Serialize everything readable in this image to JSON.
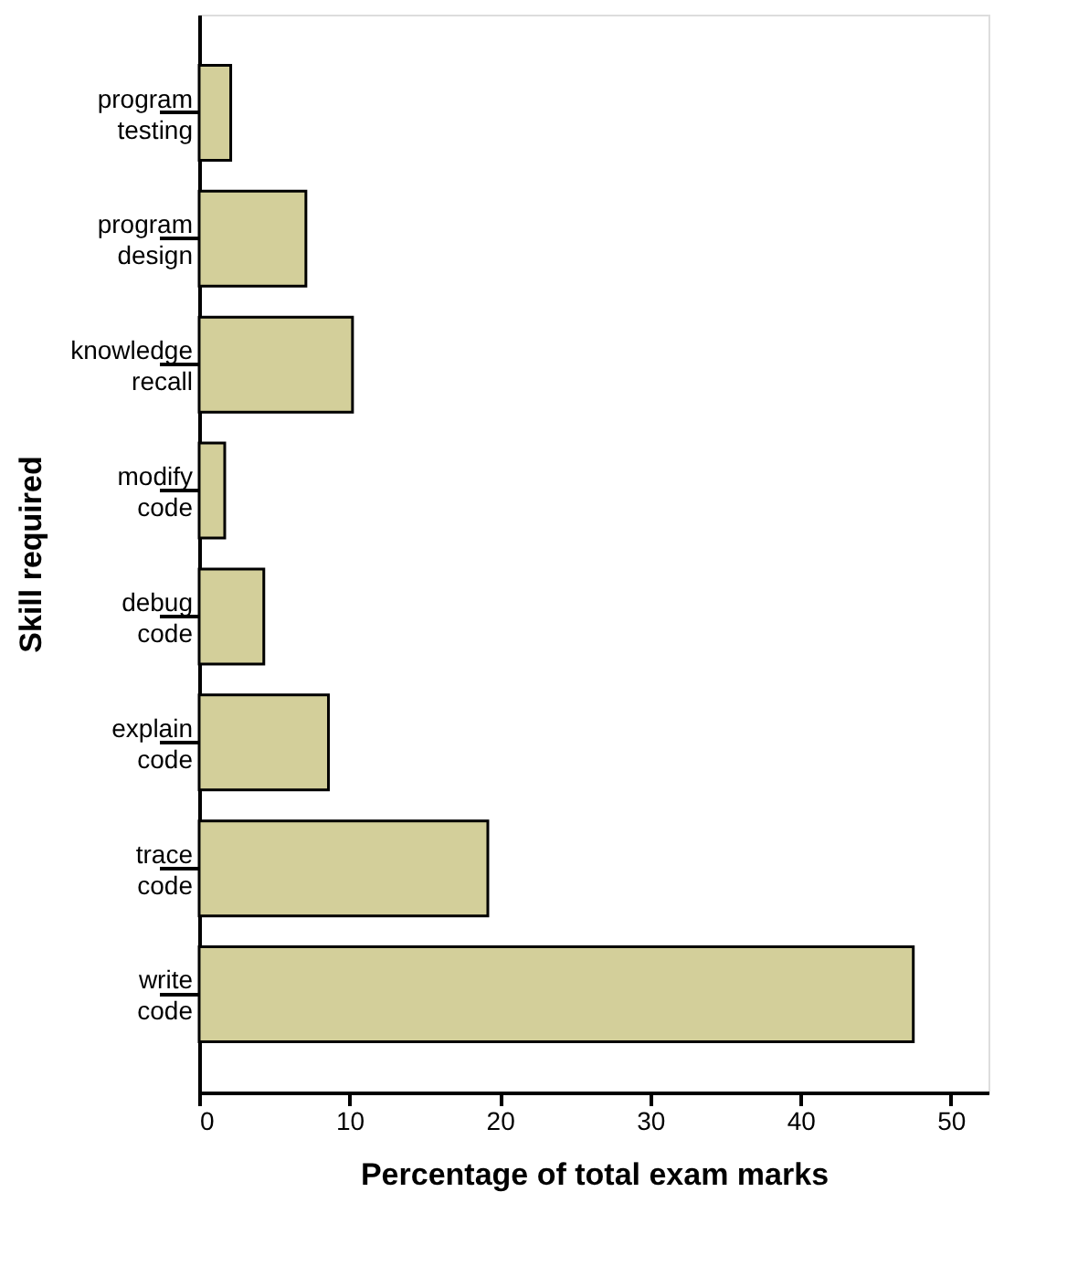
{
  "chart_data": {
    "type": "bar",
    "orientation": "horizontal",
    "categories": [
      "program\ntesting",
      "program\ndesign",
      "knowledge\nrecall",
      "modify\ncode",
      "debug\ncode",
      "explain\ncode",
      "trace\ncode",
      "write\ncode"
    ],
    "values": [
      2.1,
      7.1,
      10.2,
      1.7,
      4.3,
      8.6,
      19.2,
      47.5
    ],
    "color": "#d3cf9a",
    "xlim": [
      0,
      52.5
    ],
    "xticks": [
      0,
      10,
      20,
      30,
      40,
      50
    ],
    "xlabel": "Percentage of total exam marks",
    "ylabel": "Skill required",
    "grid": false
  }
}
